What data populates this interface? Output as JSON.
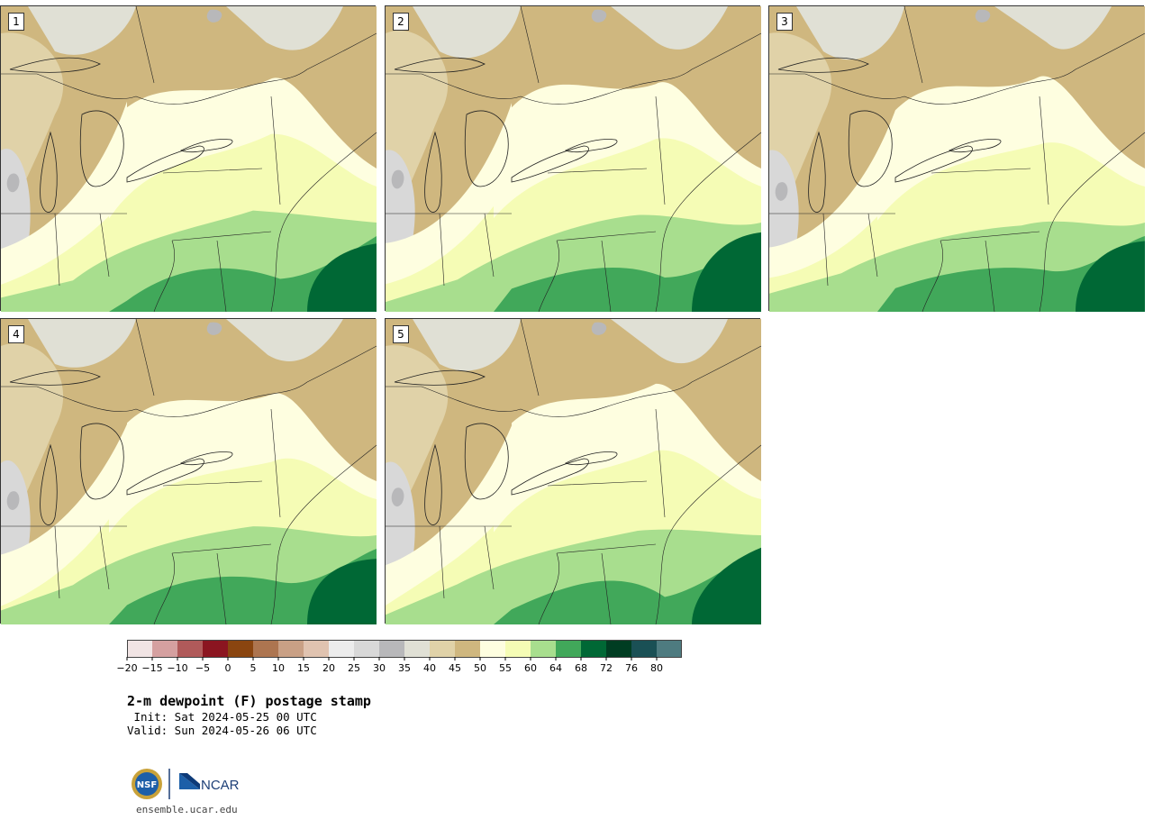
{
  "panels": [
    {
      "label": "1",
      "seed": 11
    },
    {
      "label": "2",
      "seed": 23
    },
    {
      "label": "3",
      "seed": 37
    },
    {
      "label": "4",
      "seed": 49
    },
    {
      "label": "5",
      "seed": 61
    }
  ],
  "colorbar": {
    "ticks": [
      "−20",
      "−15",
      "−10",
      "−5",
      "0",
      "5",
      "10",
      "15",
      "20",
      "25",
      "30",
      "35",
      "40",
      "45",
      "50",
      "55",
      "60",
      "64",
      "68",
      "72",
      "76",
      "80"
    ],
    "colors": [
      "#f1e4e4",
      "#d5a0a0",
      "#b05a5a",
      "#8b1520",
      "#8a4510",
      "#ad7550",
      "#c9a085",
      "#e0c3b0",
      "#ececec",
      "#d8d8d8",
      "#b8b8ba",
      "#e0e0d5",
      "#e0d2a8",
      "#cfb77f",
      "#fefee0",
      "#f5fcb5",
      "#a8de8e",
      "#41a85a",
      "#006835",
      "#003d22",
      "#1a5055",
      "#4e7b80"
    ]
  },
  "title": "2-m dewpoint (F) postage stamp",
  "init": " Init: Sat 2024-05-25 00 UTC",
  "valid": "Valid: Sun 2024-05-26 06 UTC",
  "logo": {
    "nsf": "NSF",
    "ncar": "NCAR"
  },
  "site": "ensemble.ucar.edu"
}
